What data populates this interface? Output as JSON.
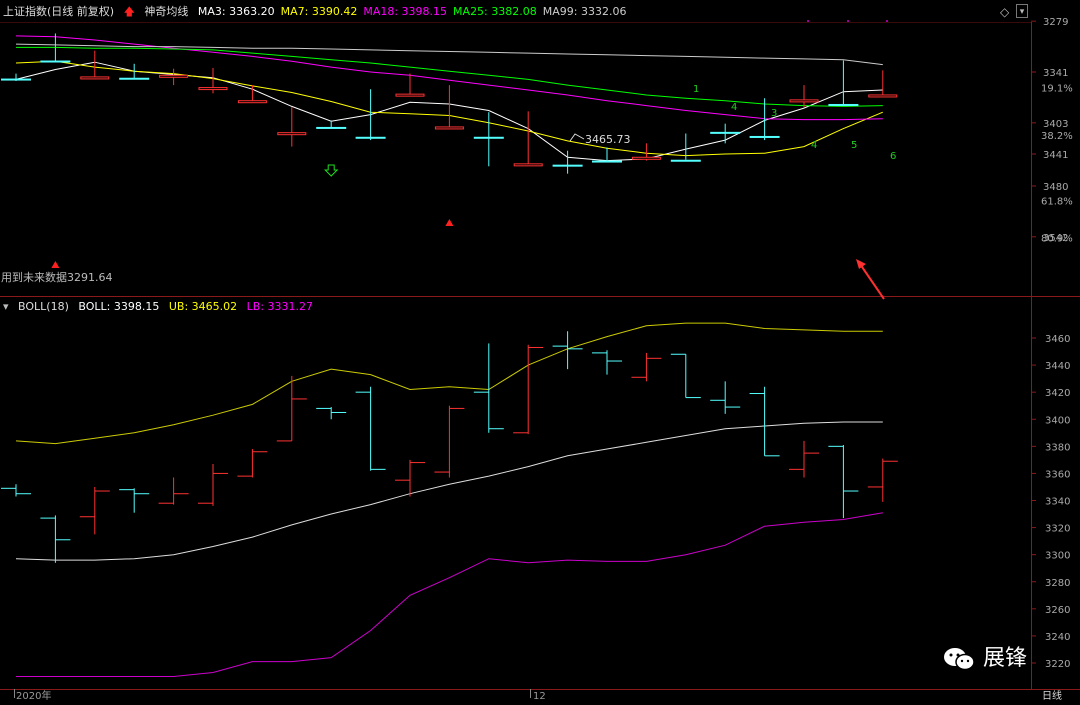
{
  "upper": {
    "index_name": "上证指数(日线 前复权)",
    "indicator_name": "神奇均线",
    "ma_labels": [
      {
        "text": "MA3: 3363.20",
        "color": "#ffffff"
      },
      {
        "text": "MA7: 3390.42",
        "color": "#ffff00"
      },
      {
        "text": "MA18: 3398.15",
        "color": "#ff00ff"
      },
      {
        "text": "MA25: 3382.08",
        "color": "#00ff00"
      },
      {
        "text": "MA99: 3332.06",
        "color": "#cccccc"
      }
    ],
    "high_label": "3465.73",
    "low_label": "用到未来数据3291.64",
    "price_ticks": [
      "3542",
      "3480",
      "3441",
      "3403",
      "3341",
      "3279"
    ],
    "fib_ticks": [
      "80.9%",
      "61.8%",
      "38.2%",
      "19.1%"
    ],
    "count_marks": [
      "1",
      "4",
      "3",
      "4",
      "5",
      "6"
    ]
  },
  "lower": {
    "indicator": "BOLL(18)",
    "boll_label": "BOLL: 3398.15",
    "ub_label": "UB: 3465.02",
    "lb_label": "LB: 3331.27",
    "ticks": [
      "3460",
      "3440",
      "3420",
      "3400",
      "3380",
      "3360",
      "3340",
      "3320",
      "3300",
      "3280",
      "3260",
      "3240",
      "3220"
    ]
  },
  "footer": {
    "year": "2020年",
    "month": "12",
    "period": "日线"
  },
  "watermark": "展锋",
  "colors": {
    "up": "#ff3232",
    "down": "#54ffff",
    "ma3": "#ffffff",
    "ma7": "#ffff00",
    "ma18": "#ff00ff",
    "ma25": "#00ff00",
    "ma99": "#cccccc"
  },
  "chart_data": [
    {
      "type": "candlestick",
      "title": "上证指数(日线 前复权)",
      "ylim": [
        3260,
        3560
      ],
      "candles": [
        {
          "open": 3349,
          "close": 3345,
          "high": 3352,
          "low": 3343
        },
        {
          "open": 3327,
          "close": 3311,
          "high": 3329,
          "low": 3294
        },
        {
          "open": 3328,
          "close": 3347,
          "high": 3350,
          "low": 3315
        },
        {
          "open": 3348,
          "close": 3345,
          "high": 3349,
          "low": 3331
        },
        {
          "open": 3338,
          "close": 3345,
          "high": 3357,
          "low": 3337
        },
        {
          "open": 3338,
          "close": 3360,
          "high": 3367,
          "low": 3336
        },
        {
          "open": 3358,
          "close": 3376,
          "high": 3378,
          "low": 3357
        },
        {
          "open": 3384,
          "close": 3415,
          "high": 3432,
          "low": 3384
        },
        {
          "open": 3408,
          "close": 3405,
          "high": 3409,
          "low": 3400
        },
        {
          "open": 3420,
          "close": 3363,
          "high": 3424,
          "low": 3362
        },
        {
          "open": 3355,
          "close": 3368,
          "high": 3370,
          "low": 3343
        },
        {
          "open": 3361,
          "close": 3408,
          "high": 3410,
          "low": 3357
        },
        {
          "open": 3420,
          "close": 3393,
          "high": 3456,
          "low": 3390
        },
        {
          "open": 3390,
          "close": 3453,
          "high": 3455,
          "low": 3389
        },
        {
          "open": 3454,
          "close": 3452,
          "high": 3465,
          "low": 3437
        },
        {
          "open": 3449,
          "close": 3443,
          "high": 3451,
          "low": 3433
        },
        {
          "open": 3431,
          "close": 3445,
          "high": 3449,
          "low": 3428
        },
        {
          "open": 3448,
          "close": 3416,
          "high": 3448,
          "low": 3416
        },
        {
          "open": 3414,
          "close": 3409,
          "high": 3428,
          "low": 3404
        },
        {
          "open": 3419,
          "close": 3373,
          "high": 3424,
          "low": 3373
        },
        {
          "open": 3363,
          "close": 3375,
          "high": 3384,
          "low": 3357
        },
        {
          "open": 3380,
          "close": 3347,
          "high": 3381,
          "low": 3327
        },
        {
          "open": 3350,
          "close": 3369,
          "high": 3371,
          "low": 3339
        }
      ],
      "series": [
        {
          "name": "MA3",
          "color": "#ffffff",
          "values": [
            3350,
            3338,
            3329,
            3340,
            3344,
            3348,
            3362,
            3383,
            3401,
            3393,
            3378,
            3380,
            3388,
            3410,
            3445,
            3449,
            3447,
            3435,
            3424,
            3400,
            3385,
            3365,
            3363
          ]
        },
        {
          "name": "MA7",
          "color": "#ffff00",
          "values": [
            3330,
            3328,
            3335,
            3340,
            3343,
            3349,
            3358,
            3366,
            3377,
            3390,
            3392,
            3394,
            3403,
            3413,
            3425,
            3434,
            3440,
            3443,
            3441,
            3440,
            3432,
            3410,
            3390
          ]
        },
        {
          "name": "MA18",
          "color": "#ff00ff",
          "values": [
            3297,
            3298,
            3302,
            3307,
            3312,
            3317,
            3322,
            3328,
            3335,
            3341,
            3345,
            3351,
            3357,
            3363,
            3369,
            3376,
            3382,
            3388,
            3393,
            3398,
            3399,
            3399,
            3398
          ]
        },
        {
          "name": "MA25",
          "color": "#00ff00",
          "values": [
            3311,
            3311,
            3312,
            3312,
            3313,
            3314,
            3318,
            3322,
            3326,
            3330,
            3335,
            3340,
            3345,
            3350,
            3357,
            3363,
            3369,
            3373,
            3376,
            3380,
            3382,
            3383,
            3382
          ]
        },
        {
          "name": "MA99",
          "color": "#cccccc",
          "values": [
            3307,
            3308,
            3309,
            3310,
            3310,
            3311,
            3312,
            3312,
            3313,
            3314,
            3315,
            3316,
            3317,
            3318,
            3319,
            3320,
            3321,
            3322,
            3323,
            3324,
            3325,
            3326,
            3332
          ]
        }
      ]
    },
    {
      "type": "line",
      "title": "BOLL(18)",
      "ylim": [
        3210,
        3470
      ],
      "series": [
        {
          "name": "UB",
          "color": "#cccc00",
          "values": [
            3384,
            3382,
            3386,
            3390,
            3396,
            3403,
            3411,
            3428,
            3437,
            3433,
            3422,
            3424,
            3422,
            3440,
            3452,
            3461,
            3469,
            3471,
            3471,
            3467,
            3466,
            3465,
            3465
          ]
        },
        {
          "name": "BOLL",
          "color": "#dddddd",
          "values": [
            3297,
            3296,
            3296,
            3297,
            3300,
            3306,
            3313,
            3322,
            3330,
            3337,
            3345,
            3352,
            3358,
            3365,
            3373,
            3378,
            3383,
            3388,
            3393,
            3395,
            3397,
            3398,
            3398
          ]
        },
        {
          "name": "LB",
          "color": "#cc00cc",
          "values": [
            3210,
            3210,
            3210,
            3210,
            3210,
            3213,
            3221,
            3221,
            3224,
            3244,
            3270,
            3283,
            3297,
            3294,
            3296,
            3295,
            3295,
            3300,
            3307,
            3321,
            3324,
            3326,
            3331
          ]
        }
      ]
    }
  ]
}
